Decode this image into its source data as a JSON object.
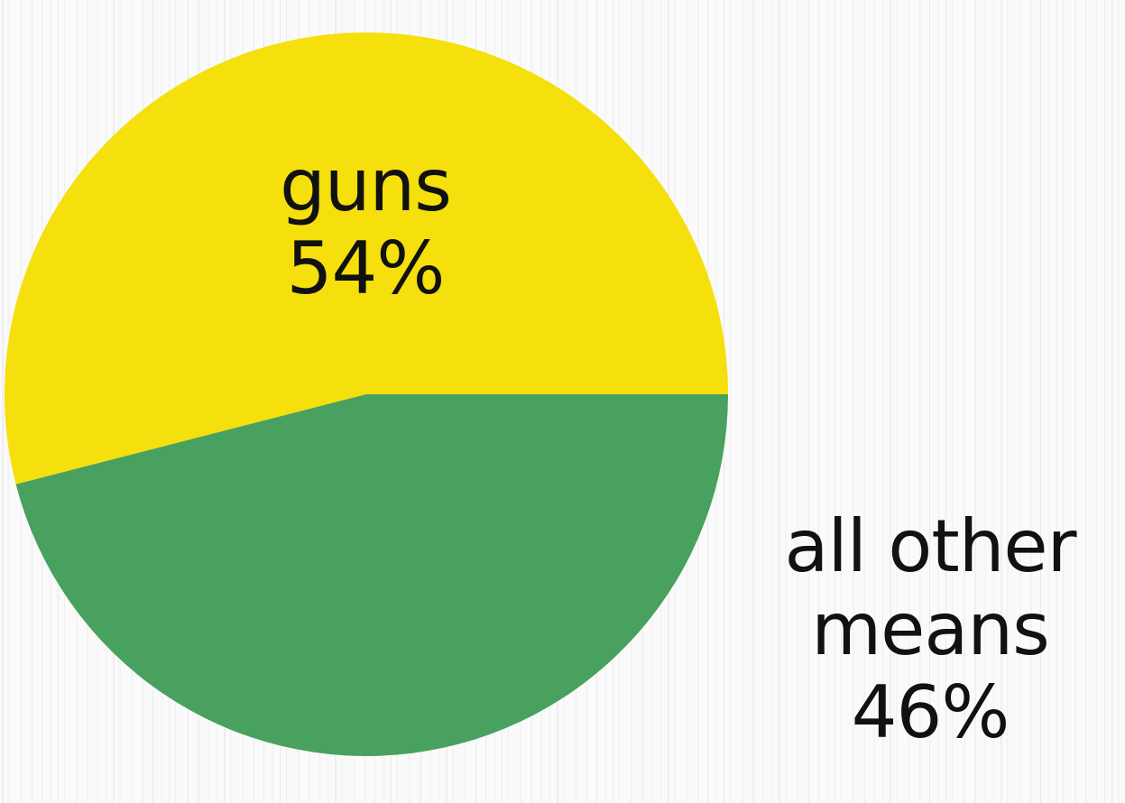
{
  "chart_data": {
    "type": "pie",
    "title": "",
    "slices": [
      {
        "label": "guns",
        "value": 54,
        "value_label": "54%",
        "color": "#F5DF0C"
      },
      {
        "label": "all other means",
        "label_lines": [
          "all other",
          "means"
        ],
        "value": 46,
        "value_label": "46%",
        "color": "#48A15E"
      }
    ],
    "background": {
      "color": "#FAFAFA",
      "pattern": "vertical-stripes",
      "stripe_color": "#E4E4E4"
    },
    "legend": "none",
    "grid": false
  }
}
